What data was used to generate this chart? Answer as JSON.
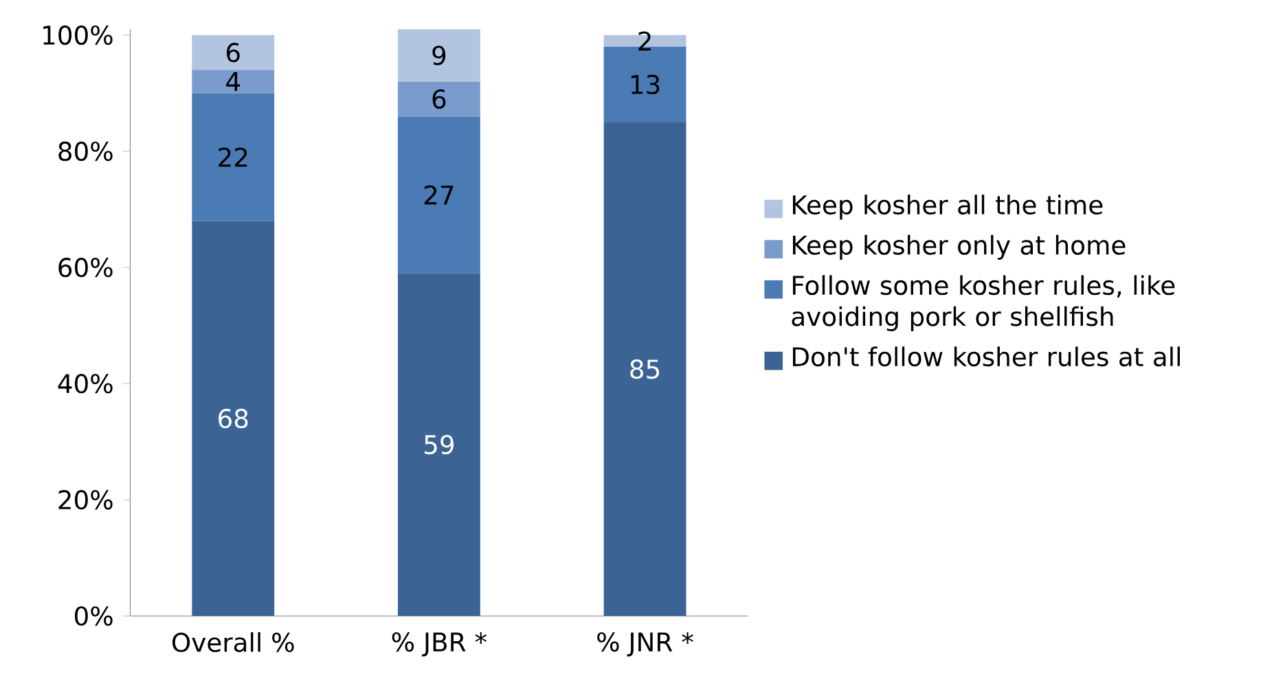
{
  "chart_data": {
    "type": "bar",
    "stacked": true,
    "data_labels": true,
    "legend": "right",
    "grid": false,
    "categories": [
      "Overall %",
      "% JBR *",
      "% JNR *"
    ],
    "ylim": [
      0,
      101
    ],
    "yticks": [
      {
        "value": 0,
        "label": "0%"
      },
      {
        "value": 20,
        "label": "20%"
      },
      {
        "value": 40,
        "label": "40%"
      },
      {
        "value": 60,
        "label": "60%"
      },
      {
        "value": 80,
        "label": "80%"
      },
      {
        "value": 100,
        "label": "100%"
      }
    ],
    "series": [
      {
        "name": "Don't follow kosher rules at all",
        "color": "#3b6494",
        "values": [
          68,
          59,
          85
        ]
      },
      {
        "name": "Follow some kosher rules, like avoiding pork or shellfish",
        "color": "#4a7bb5",
        "values": [
          22,
          27,
          13
        ]
      },
      {
        "name": "Keep kosher only at home",
        "color": "#7a9ccd",
        "values": [
          4,
          6,
          null
        ]
      },
      {
        "name": "Keep kosher all the time",
        "color": "#b2c4e0",
        "values": [
          6,
          9,
          2
        ]
      }
    ]
  }
}
